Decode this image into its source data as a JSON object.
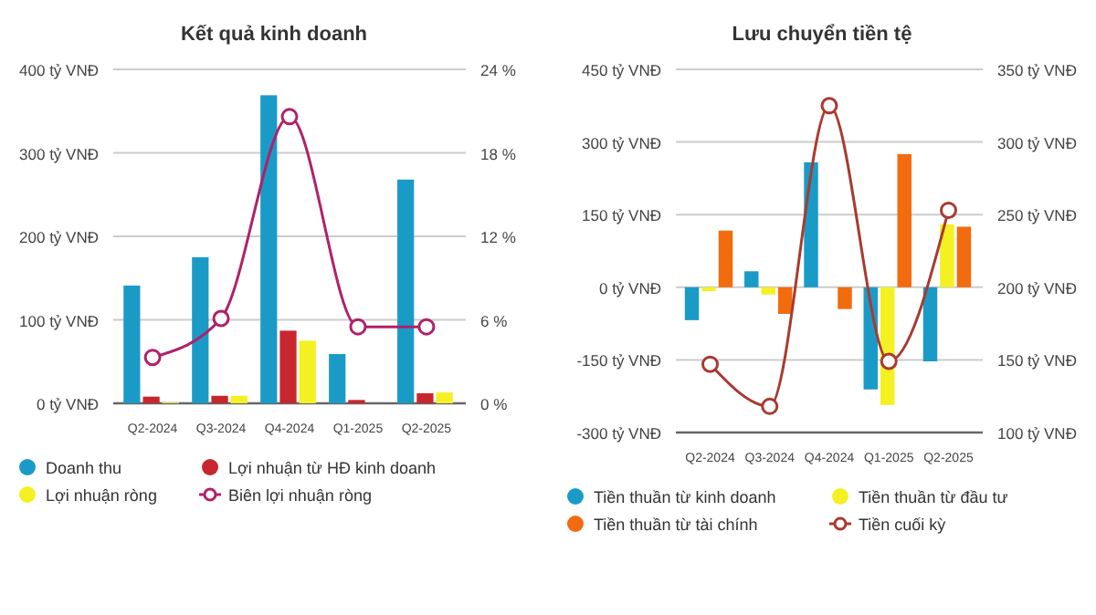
{
  "chart_data": [
    {
      "type": "bar",
      "title": "Kết quả kinh doanh",
      "categories": [
        "Q2-2024",
        "Q3-2024",
        "Q4-2024",
        "Q1-2025",
        "Q2-2025"
      ],
      "series": [
        {
          "name": "Doanh thu",
          "color": "#1a9bc7",
          "values": [
            141,
            175,
            369,
            59,
            268
          ]
        },
        {
          "name": "Lợi nhuận từ HĐ kinh doanh",
          "color": "#c8262e",
          "values": [
            8,
            9,
            87,
            4,
            12
          ]
        },
        {
          "name": "Lợi nhuận ròng",
          "color": "#f5f022",
          "values": [
            1,
            9,
            75,
            0,
            13
          ]
        },
        {
          "name": "Biên lợi nhuận ròng",
          "type": "line",
          "axis": "y2",
          "color": "#b0206a",
          "values": [
            3.3,
            6.1,
            20.6,
            5.5,
            5.5
          ]
        }
      ],
      "ylim": [
        0,
        400
      ],
      "yticks": [
        {
          "value": 0,
          "label": "0 tỷ VNĐ"
        },
        {
          "value": 100,
          "label": "100 tỷ VNĐ"
        },
        {
          "value": 200,
          "label": "200 tỷ VNĐ"
        },
        {
          "value": 300,
          "label": "300 tỷ VNĐ"
        },
        {
          "value": 400,
          "label": "400 tỷ VNĐ"
        }
      ],
      "y2lim": [
        0,
        24
      ],
      "y2ticks": [
        {
          "value": 0,
          "label": "0 %"
        },
        {
          "value": 6,
          "label": "6 %"
        },
        {
          "value": 12,
          "label": "12 %"
        },
        {
          "value": 18,
          "label": "18 %"
        },
        {
          "value": 24,
          "label": "24 %"
        }
      ],
      "grid": "y",
      "legend": "bottom",
      "marker": "circle"
    },
    {
      "type": "bar",
      "title": "Lưu chuyển tiền tệ",
      "categories": [
        "Q2-2024",
        "Q3-2024",
        "Q4-2024",
        "Q1-2025",
        "Q2-2025"
      ],
      "series": [
        {
          "name": "Tiền thuần từ kinh doanh",
          "color": "#1a9bc7",
          "values": [
            -68,
            33,
            258,
            -211,
            -153
          ]
        },
        {
          "name": "Tiền thuần từ đầu tư",
          "color": "#f5f022",
          "values": [
            -8,
            -15,
            0,
            -243,
            130
          ]
        },
        {
          "name": "Tiền thuần từ tài chính",
          "color": "#f26b0f",
          "values": [
            117,
            -55,
            -45,
            275,
            125
          ]
        },
        {
          "name": "Tiền cuối kỳ",
          "type": "line",
          "axis": "y2",
          "color": "#a83a30",
          "values": [
            147,
            118,
            325,
            149,
            253
          ]
        }
      ],
      "ylim": [
        -300,
        450
      ],
      "yticks": [
        {
          "value": -300,
          "label": "-300 tỷ VNĐ"
        },
        {
          "value": -150,
          "label": "-150 tỷ VNĐ"
        },
        {
          "value": 0,
          "label": "0 tỷ VNĐ"
        },
        {
          "value": 150,
          "label": "150 tỷ VNĐ"
        },
        {
          "value": 300,
          "label": "300 tỷ VNĐ"
        },
        {
          "value": 450,
          "label": "450 tỷ VNĐ"
        }
      ],
      "y2lim": [
        100,
        350
      ],
      "y2ticks": [
        {
          "value": 100,
          "label": "100 tỷ VNĐ"
        },
        {
          "value": 150,
          "label": "150 tỷ VNĐ"
        },
        {
          "value": 200,
          "label": "200 tỷ VNĐ"
        },
        {
          "value": 250,
          "label": "250 tỷ VNĐ"
        },
        {
          "value": 300,
          "label": "300 tỷ VNĐ"
        },
        {
          "value": 350,
          "label": "350 tỷ VNĐ"
        }
      ],
      "grid": "y",
      "legend": "bottom",
      "marker": "circle"
    }
  ]
}
